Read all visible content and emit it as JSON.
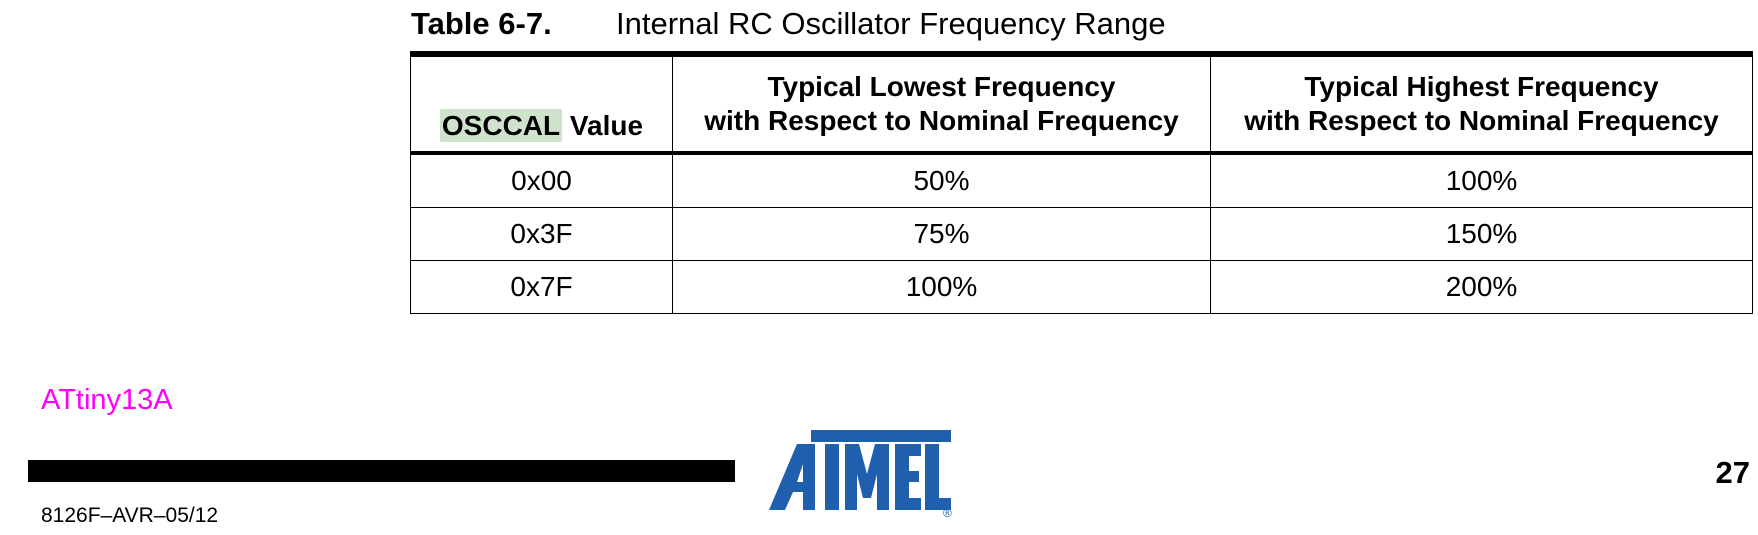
{
  "caption": {
    "number": "Table 6-7.",
    "title": "Internal RC Oscillator Frequency Range"
  },
  "table": {
    "headers": {
      "col1_highlight": "OSCCAL",
      "col1_rest": " Value",
      "col2_line1": "Typical Lowest Frequency",
      "col2_line2": "with Respect to Nominal Frequency",
      "col3_line1": "Typical Highest Frequency",
      "col3_line2": "with Respect to Nominal Frequency"
    },
    "rows": [
      [
        "0x00",
        "50%",
        "100%"
      ],
      [
        "0x3F",
        "75%",
        "150%"
      ],
      [
        "0x7F",
        "100%",
        "200%"
      ]
    ]
  },
  "footer": {
    "product": "ATtiny13A",
    "doc_code": "8126F–AVR–05/12",
    "page_number": "27",
    "logo_text": "ATMEL",
    "registered_mark": "®",
    "product_color": "#ff00ff",
    "logo_color": "#1f5fae"
  }
}
